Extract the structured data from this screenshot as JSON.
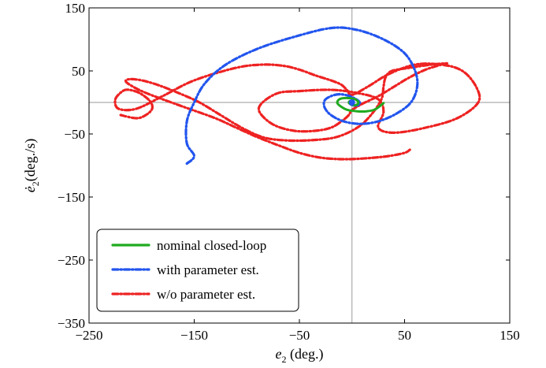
{
  "colors": {
    "nominal": "#1faa1f",
    "with_est": "#2255ee",
    "without_est": "#ee2222",
    "axis": "#000000",
    "crosshair": "#999999"
  },
  "chart_data": {
    "type": "line",
    "xlabel": "e_2 (deg.)",
    "ylabel": "ė_2(deg./s)",
    "xlabel_main": "e",
    "xlabel_sub": "2",
    "xlabel_rest": " (deg.)",
    "ylabel_main": "ė",
    "ylabel_sub": "2",
    "ylabel_rest": "(deg./s)",
    "xlim": [
      -250,
      150
    ],
    "ylim": [
      -350,
      150
    ],
    "xticks": [
      -250,
      -150,
      -50,
      50,
      150
    ],
    "yticks": [
      150,
      50,
      -50,
      -150,
      -250,
      -350
    ],
    "xtick_labels": [
      "−250",
      "−150",
      "−50",
      "50",
      "150"
    ],
    "ytick_labels": [
      "150",
      "50",
      "−50",
      "−150",
      "−250",
      "−350"
    ],
    "grid": false,
    "crosshair_at": [
      0,
      0
    ],
    "legend_position": "bottom-left",
    "series": [
      {
        "name": "nominal closed-loop",
        "style": "solid",
        "color_key": "nominal",
        "x": [
          30,
          22,
          14,
          5,
          -4,
          -10,
          -14,
          -12,
          -6,
          1,
          5,
          6,
          4,
          1,
          -2,
          -3,
          -2,
          0
        ],
        "y": [
          -1,
          -11,
          -14,
          -14,
          -12,
          -7,
          -1,
          5,
          7,
          6,
          3,
          -1,
          -4,
          -4,
          -2,
          0,
          2,
          0
        ]
      },
      {
        "name": "with parameter est.",
        "style": "dashdot",
        "color_key": "with_est",
        "x": [
          -157,
          -150,
          -157,
          -157,
          -150,
          -140,
          -120,
          -90,
          -55,
          -20,
          5,
          30,
          50,
          60,
          62,
          56,
          42,
          25,
          8,
          -8,
          -20,
          -26,
          -26,
          -20,
          -12,
          -4,
          3,
          7,
          7,
          4,
          0,
          -2,
          -3,
          -2,
          0
        ],
        "y": [
          -97,
          -85,
          -65,
          -30,
          0,
          30,
          60,
          85,
          104,
          118,
          115,
          100,
          78,
          50,
          25,
          0,
          -18,
          -30,
          -34,
          -30,
          -20,
          -8,
          3,
          10,
          13,
          11,
          6,
          1,
          -3,
          -5,
          -4,
          -2,
          0,
          1,
          0
        ]
      },
      {
        "name": "w/o parameter est.",
        "style": "dashdot",
        "color_key": "without_est",
        "x": [
          -220,
          -205,
          -196,
          -190,
          -192,
          -202,
          -212,
          -218,
          -225,
          -222,
          -205,
          -180,
          -150,
          -110,
          -85,
          -65,
          -50,
          -35,
          -20,
          -10,
          -5,
          0,
          15,
          35,
          60,
          85,
          105,
          118,
          120,
          100,
          70,
          40,
          25,
          30,
          25,
          5,
          -20,
          -50,
          -70,
          -85,
          -88,
          -75,
          -55,
          -35,
          -20,
          -10,
          -3,
          0,
          10,
          25,
          40,
          55,
          70,
          85,
          90,
          75,
          55,
          38,
          32,
          30,
          28,
          18,
          5,
          -15,
          -40,
          -65,
          -85,
          -105,
          -125,
          -145,
          -165,
          -185,
          -200,
          -210,
          -215,
          -213,
          -200,
          -180,
          -155,
          -130,
          -110,
          -90,
          -70,
          -50,
          -28,
          -5,
          18,
          35,
          50,
          55
        ],
        "y": [
          -20,
          -25,
          -20,
          -10,
          2,
          15,
          20,
          18,
          5,
          -10,
          -10,
          10,
          35,
          55,
          60,
          58,
          52,
          43,
          35,
          28,
          20,
          12,
          25,
          45,
          60,
          60,
          50,
          25,
          0,
          -25,
          -40,
          -48,
          -40,
          -15,
          5,
          15,
          20,
          18,
          15,
          0,
          -15,
          -35,
          -45,
          -45,
          -40,
          -30,
          -20,
          -12,
          -2,
          10,
          25,
          40,
          52,
          60,
          62,
          60,
          55,
          50,
          40,
          25,
          5,
          -20,
          -40,
          -55,
          -60,
          -60,
          -55,
          -40,
          -20,
          0,
          15,
          28,
          35,
          37,
          35,
          30,
          18,
          5,
          -10,
          -25,
          -40,
          -55,
          -68,
          -80,
          -88,
          -90,
          -88,
          -85,
          -80,
          -75
        ]
      }
    ]
  }
}
